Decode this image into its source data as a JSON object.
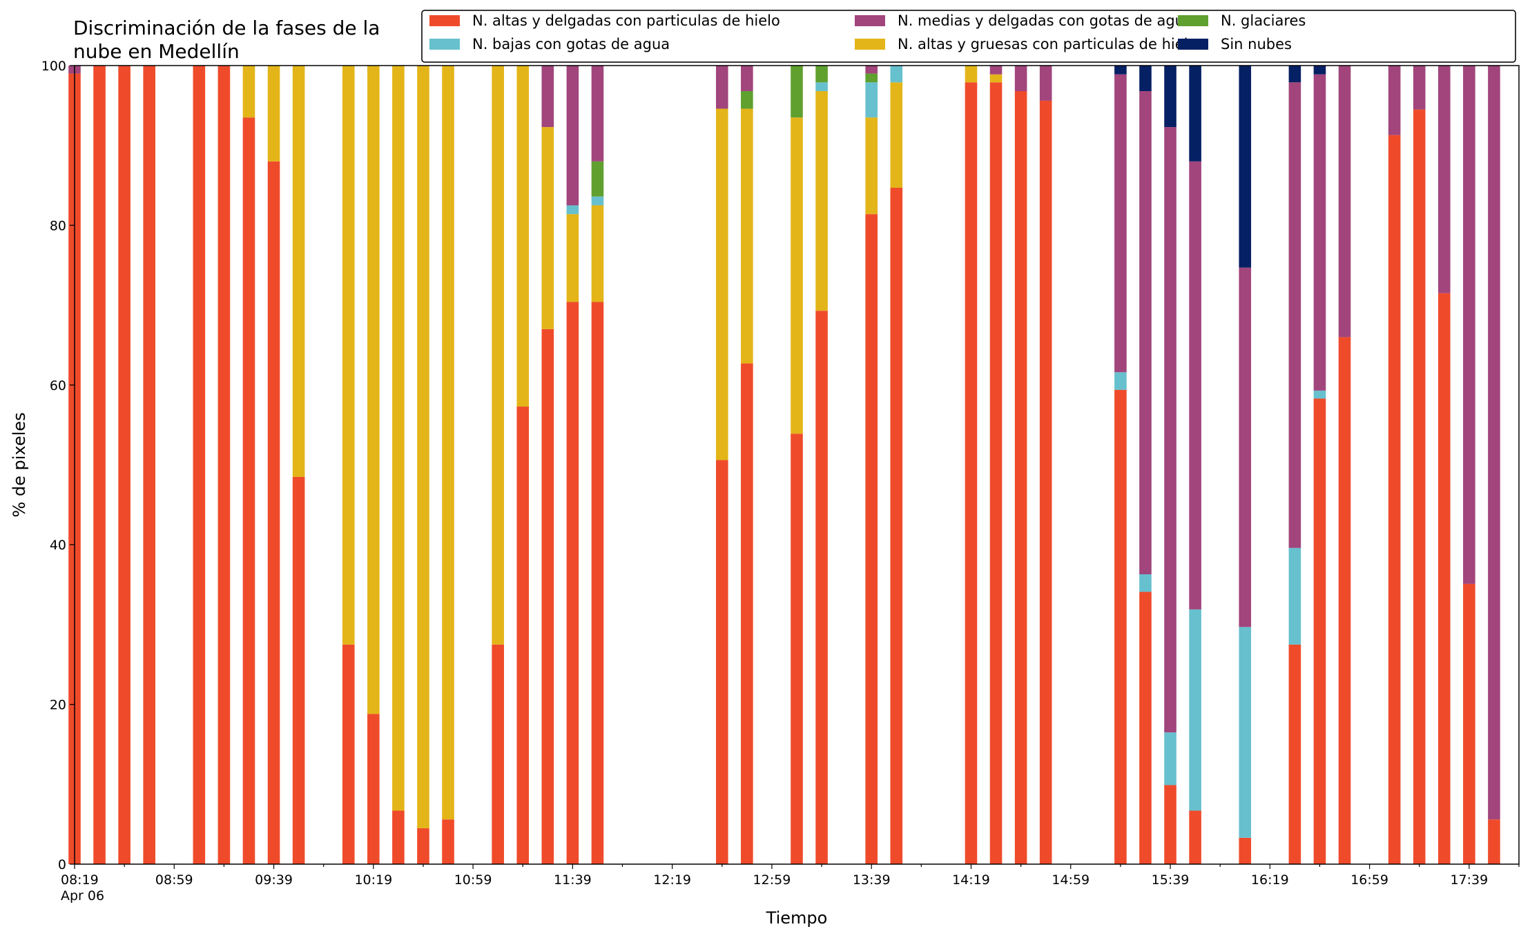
{
  "chart_data": {
    "type": "bar",
    "stacked": true,
    "title": "Discriminación de la fases de la nube en Medellín",
    "title_lines": [
      "Discriminación de la fases de la",
      "nube en Medellín"
    ],
    "xlabel": "Tiempo",
    "ylabel": "% de pixeles",
    "ylim": [
      0,
      100
    ],
    "yticks": [
      0,
      20,
      40,
      60,
      80,
      100
    ],
    "x_range_minutes": [
      499,
      1079
    ],
    "x_major_ticks": [
      {
        "minute": 499,
        "label": "08:19",
        "sublabel": "Apr 06"
      },
      {
        "minute": 539,
        "label": "08:59"
      },
      {
        "minute": 579,
        "label": "09:39"
      },
      {
        "minute": 619,
        "label": "10:19"
      },
      {
        "minute": 659,
        "label": "10:59"
      },
      {
        "minute": 699,
        "label": "11:39"
      },
      {
        "minute": 739,
        "label": "12:19"
      },
      {
        "minute": 779,
        "label": "12:59"
      },
      {
        "minute": 819,
        "label": "13:39"
      },
      {
        "minute": 859,
        "label": "14:19"
      },
      {
        "minute": 899,
        "label": "14:59"
      },
      {
        "minute": 939,
        "label": "15:39"
      },
      {
        "minute": 979,
        "label": "16:19"
      },
      {
        "minute": 1019,
        "label": "16:59"
      },
      {
        "minute": 1059,
        "label": "17:39"
      }
    ],
    "grid": false,
    "legend_position": "top-right",
    "series": [
      {
        "name": "N. altas y delgadas con particulas de hielo",
        "color": "#ef4b2b"
      },
      {
        "name": "N. altas y gruesas con particulas de hielo",
        "color": "#e3b519"
      },
      {
        "name": "N. bajas con gotas de agua",
        "color": "#67c0ce"
      },
      {
        "name": "N. glaciares",
        "color": "#5fa02f"
      },
      {
        "name": "N. medias y delgadas con gotas de agua",
        "color": "#a1457c"
      },
      {
        "name": "Sin nubes",
        "color": "#062064"
      }
    ],
    "legend_order": [
      0,
      2,
      4,
      1,
      3,
      5
    ],
    "bars": [
      {
        "time": "08:19",
        "values": [
          99,
          0,
          0,
          0,
          1,
          0
        ]
      },
      {
        "time": "08:29",
        "values": [
          100,
          0,
          0,
          0,
          0,
          0
        ]
      },
      {
        "time": "08:39",
        "values": [
          100,
          0,
          0,
          0,
          0,
          0
        ]
      },
      {
        "time": "08:49",
        "values": [
          100,
          0,
          0,
          0,
          0,
          0
        ]
      },
      {
        "time": "09:09",
        "values": [
          100,
          0,
          0,
          0,
          0,
          0
        ]
      },
      {
        "time": "09:19",
        "values": [
          100,
          0,
          0,
          0,
          0,
          0
        ]
      },
      {
        "time": "09:29",
        "values": [
          93.5,
          6.5,
          0,
          0,
          0,
          0
        ]
      },
      {
        "time": "09:39",
        "values": [
          88,
          12,
          0,
          0,
          0,
          0
        ]
      },
      {
        "time": "09:49",
        "values": [
          48.5,
          51.5,
          0,
          0,
          0,
          0
        ]
      },
      {
        "time": "10:09",
        "values": [
          27.5,
          72.5,
          0,
          0,
          0,
          0
        ]
      },
      {
        "time": "10:19",
        "values": [
          18.8,
          81.2,
          0,
          0,
          0,
          0
        ]
      },
      {
        "time": "10:29",
        "values": [
          6.7,
          93.3,
          0,
          0,
          0,
          0
        ]
      },
      {
        "time": "10:39",
        "values": [
          4.5,
          95.5,
          0,
          0,
          0,
          0
        ]
      },
      {
        "time": "10:49",
        "values": [
          5.6,
          94.4,
          0,
          0,
          0,
          0
        ]
      },
      {
        "time": "11:09",
        "values": [
          27.5,
          72.5,
          0,
          0,
          0,
          0
        ]
      },
      {
        "time": "11:19",
        "values": [
          57.3,
          42.7,
          0,
          0,
          0,
          0
        ]
      },
      {
        "time": "11:29",
        "values": [
          67,
          25.3,
          0,
          0,
          7.7,
          0
        ]
      },
      {
        "time": "11:39",
        "values": [
          70.4,
          11,
          1.1,
          0,
          17.5,
          0
        ]
      },
      {
        "time": "11:49",
        "values": [
          70.4,
          12.1,
          1.1,
          4.4,
          12,
          0
        ]
      },
      {
        "time": "12:39",
        "values": [
          50.6,
          44,
          0,
          0,
          5.4,
          0
        ]
      },
      {
        "time": "12:49",
        "values": [
          62.7,
          31.9,
          0,
          2.2,
          3.2,
          0
        ]
      },
      {
        "time": "13:09",
        "values": [
          53.9,
          39.6,
          0,
          6.5,
          0,
          0
        ]
      },
      {
        "time": "13:19",
        "values": [
          69.3,
          27.5,
          1.1,
          2.1,
          0,
          0
        ]
      },
      {
        "time": "13:39",
        "values": [
          81.4,
          12.1,
          4.4,
          1.1,
          1,
          0
        ]
      },
      {
        "time": "13:49",
        "values": [
          84.7,
          13.2,
          2.1,
          0,
          0,
          0
        ]
      },
      {
        "time": "14:19",
        "values": [
          97.9,
          2.1,
          0,
          0,
          0,
          0
        ]
      },
      {
        "time": "14:29",
        "values": [
          97.9,
          1,
          0,
          0,
          1.1,
          0
        ]
      },
      {
        "time": "14:39",
        "values": [
          96.8,
          0,
          0,
          0,
          3.2,
          0
        ]
      },
      {
        "time": "14:49",
        "values": [
          95.6,
          0,
          0,
          0,
          4.4,
          0
        ]
      },
      {
        "time": "15:19",
        "values": [
          59.4,
          0,
          2.2,
          0,
          37.3,
          1.1
        ]
      },
      {
        "time": "15:29",
        "values": [
          34.1,
          0,
          2.2,
          0,
          60.5,
          3.2
        ]
      },
      {
        "time": "15:39",
        "values": [
          9.9,
          0,
          6.6,
          0,
          75.8,
          7.7
        ]
      },
      {
        "time": "15:49",
        "values": [
          6.7,
          0,
          25.2,
          0,
          56.1,
          12
        ]
      },
      {
        "time": "16:09",
        "values": [
          3.3,
          0,
          26.4,
          0,
          45,
          25.3
        ]
      },
      {
        "time": "16:29",
        "values": [
          27.5,
          0,
          12.1,
          0,
          58.3,
          2.1
        ]
      },
      {
        "time": "16:39",
        "values": [
          58.3,
          0,
          1,
          0,
          39.6,
          1.1
        ]
      },
      {
        "time": "16:49",
        "values": [
          66,
          0,
          0,
          0,
          34,
          0
        ]
      },
      {
        "time": "17:09",
        "values": [
          91.3,
          0,
          0,
          0,
          8.7,
          0
        ]
      },
      {
        "time": "17:19",
        "values": [
          94.5,
          0,
          0,
          0,
          5.5,
          0
        ]
      },
      {
        "time": "17:29",
        "values": [
          71.5,
          0,
          0,
          0,
          28.5,
          0
        ]
      },
      {
        "time": "17:39",
        "values": [
          35.1,
          0,
          0,
          0,
          64.9,
          0
        ]
      },
      {
        "time": "17:49",
        "values": [
          5.6,
          0,
          0,
          0,
          94.4,
          0
        ]
      }
    ]
  }
}
